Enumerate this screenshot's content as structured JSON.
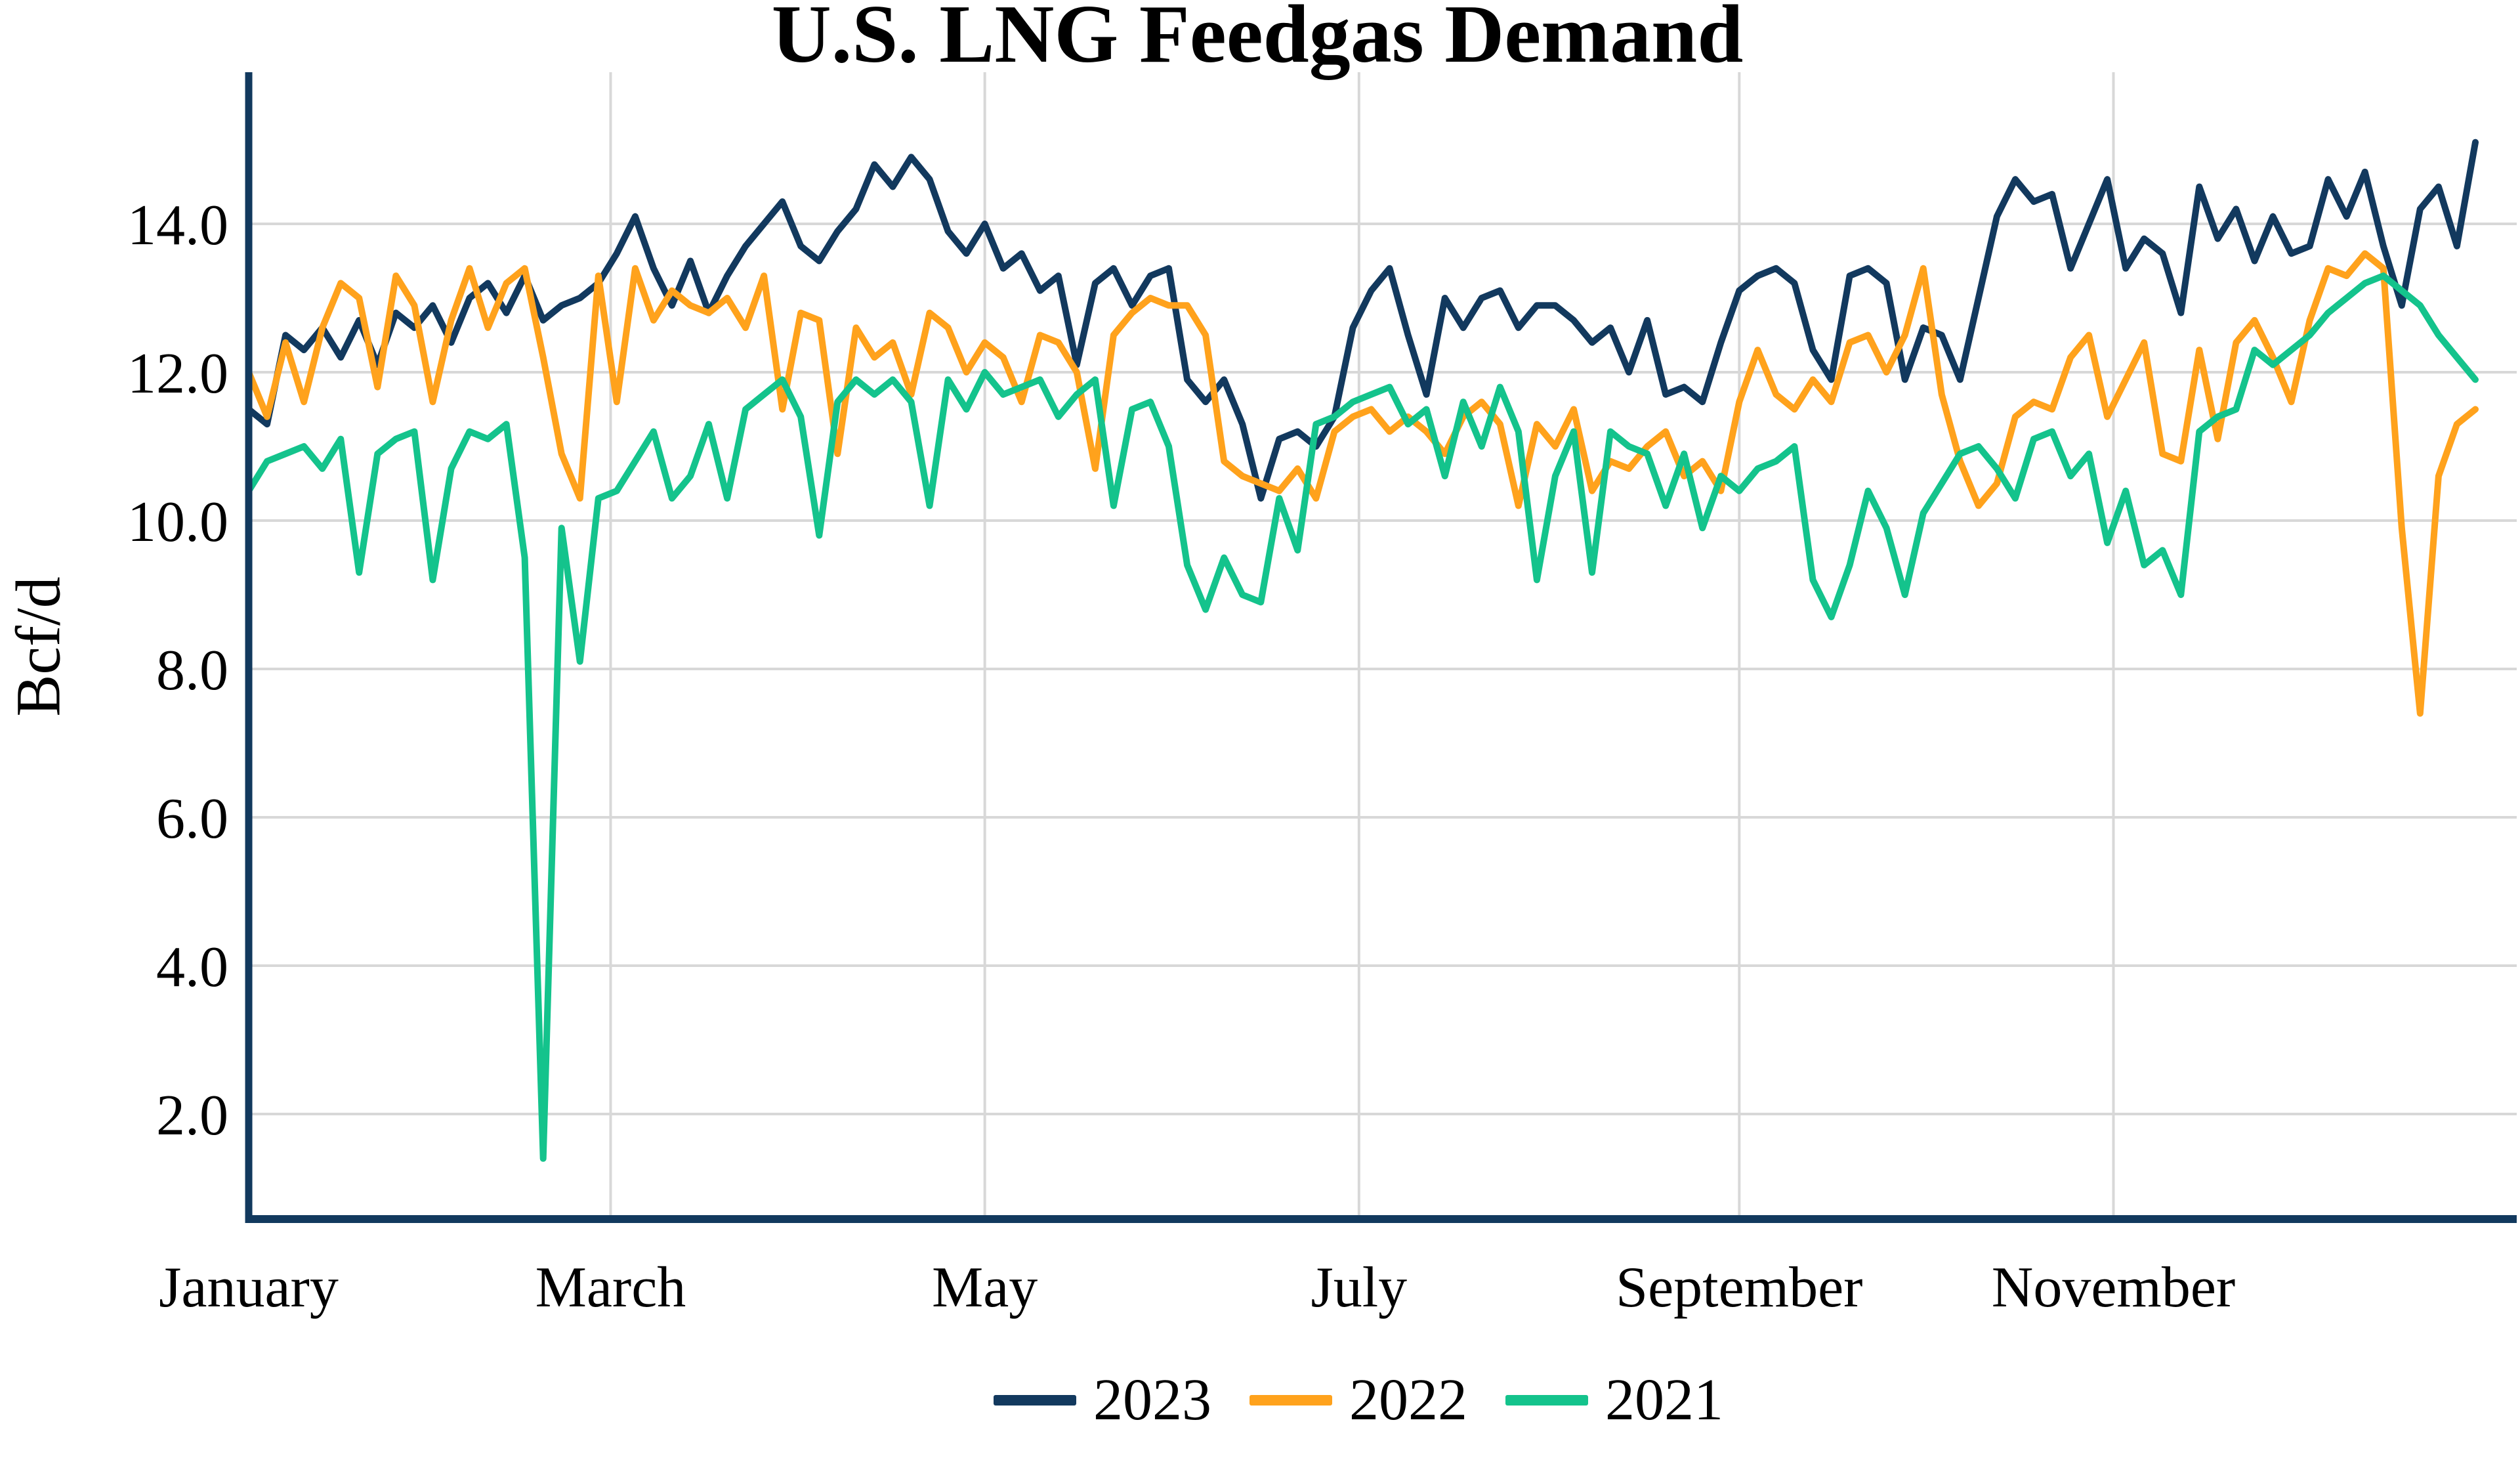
{
  "header": {
    "title": "U.S. LNG Feedgas Demand"
  },
  "chart_data": {
    "type": "line",
    "title": "U.S. LNG Feedgas Demand",
    "xlabel": "",
    "ylabel": "Bcf/d",
    "grid": {
      "show": true,
      "color": "#d8d8d8"
    },
    "axis_line_color": "#12395E",
    "legend_position": "bottom",
    "x_axis": {
      "unit": "day of year",
      "range_days": [
        0,
        366
      ],
      "tick_labels": [
        "January",
        "March",
        "May",
        "July",
        "September",
        "November"
      ],
      "tick_days": [
        0,
        59,
        120,
        181,
        243,
        304
      ],
      "vertical_gridline_days": [
        59,
        120,
        181,
        243,
        304
      ]
    },
    "y_axis": {
      "range": [
        0.6,
        16.1
      ],
      "tick_values": [
        2,
        4,
        6,
        8,
        10,
        12,
        14
      ],
      "tick_labels": [
        "2.0",
        "4.0",
        "6.0",
        "8.0",
        "10.0",
        "12.0",
        "14.0"
      ]
    },
    "sample_interval_days": 3,
    "series": [
      {
        "name": "2023",
        "color": "#12395E",
        "values": [
          11.5,
          11.3,
          12.5,
          12.3,
          12.6,
          12.2,
          12.7,
          12.1,
          12.8,
          12.6,
          12.9,
          12.4,
          13.0,
          13.2,
          12.8,
          13.3,
          12.7,
          12.9,
          13.0,
          13.2,
          13.6,
          14.1,
          13.4,
          12.9,
          13.5,
          12.8,
          13.3,
          13.7,
          14.0,
          14.3,
          13.7,
          13.5,
          13.9,
          14.2,
          14.8,
          14.5,
          14.9,
          14.6,
          13.9,
          13.6,
          14.0,
          13.4,
          13.6,
          13.1,
          13.3,
          12.1,
          13.2,
          13.4,
          12.9,
          13.3,
          13.4,
          11.9,
          11.6,
          11.9,
          11.3,
          10.3,
          11.1,
          11.2,
          11.0,
          11.4,
          12.6,
          13.1,
          13.4,
          12.5,
          11.7,
          13.0,
          12.6,
          13.0,
          13.1,
          12.6,
          12.9,
          12.9,
          12.7,
          12.4,
          12.6,
          12.0,
          12.7,
          11.7,
          11.8,
          11.6,
          12.4,
          13.1,
          13.3,
          13.4,
          13.2,
          12.3,
          11.9,
          13.3,
          13.4,
          13.2,
          11.9,
          12.6,
          12.5,
          11.9,
          13.0,
          14.1,
          14.6,
          14.3,
          14.4,
          13.4,
          14.0,
          14.6,
          13.4,
          13.8,
          13.6,
          12.8,
          14.5,
          13.8,
          14.2,
          13.5,
          14.1,
          13.6,
          13.7,
          14.6,
          14.1,
          14.7,
          13.7,
          12.9,
          14.2,
          14.5,
          13.7,
          15.1
        ]
      },
      {
        "name": "2022",
        "color": "#FFA21C",
        "values": [
          12.0,
          11.4,
          12.4,
          11.6,
          12.6,
          13.2,
          13.0,
          11.8,
          13.3,
          12.9,
          11.6,
          12.7,
          13.4,
          12.6,
          13.2,
          13.4,
          12.2,
          10.9,
          10.3,
          13.3,
          11.6,
          13.4,
          12.7,
          13.1,
          12.9,
          12.8,
          13.0,
          12.6,
          13.3,
          11.5,
          12.8,
          12.7,
          10.9,
          12.6,
          12.2,
          12.4,
          11.7,
          12.8,
          12.6,
          12.0,
          12.4,
          12.2,
          11.6,
          12.5,
          12.4,
          12.0,
          10.7,
          12.5,
          12.8,
          13.0,
          12.9,
          12.9,
          12.5,
          10.8,
          10.6,
          10.5,
          10.4,
          10.7,
          10.3,
          11.2,
          11.4,
          11.5,
          11.2,
          11.4,
          11.2,
          10.9,
          11.4,
          11.6,
          11.3,
          10.2,
          11.3,
          11.0,
          11.5,
          10.4,
          10.8,
          10.7,
          11.0,
          11.2,
          10.6,
          10.8,
          10.4,
          11.6,
          12.3,
          11.7,
          11.5,
          11.9,
          11.6,
          12.4,
          12.5,
          12.0,
          12.5,
          13.4,
          11.7,
          10.8,
          10.2,
          10.5,
          11.4,
          11.6,
          11.5,
          12.2,
          12.5,
          11.4,
          11.9,
          12.4,
          10.9,
          10.8,
          12.3,
          11.1,
          12.4,
          12.7,
          12.2,
          11.6,
          12.7,
          13.4,
          13.3,
          13.6,
          13.4,
          9.9,
          7.4,
          10.6,
          11.3,
          11.5
        ]
      },
      {
        "name": "2021",
        "color": "#14C38C",
        "values": [
          10.4,
          10.8,
          10.9,
          11.0,
          10.7,
          11.1,
          9.3,
          10.9,
          11.1,
          11.2,
          9.2,
          10.7,
          11.2,
          11.1,
          11.3,
          9.5,
          1.4,
          9.9,
          8.1,
          10.3,
          10.4,
          10.8,
          11.2,
          10.3,
          10.6,
          11.3,
          10.3,
          11.5,
          11.7,
          11.9,
          11.4,
          9.8,
          11.6,
          11.9,
          11.7,
          11.9,
          11.6,
          10.2,
          11.9,
          11.5,
          12.0,
          11.7,
          11.8,
          11.9,
          11.4,
          11.7,
          11.9,
          10.2,
          11.5,
          11.6,
          11.0,
          9.4,
          8.8,
          9.5,
          9.0,
          8.9,
          10.3,
          9.6,
          11.3,
          11.4,
          11.6,
          11.7,
          11.8,
          11.3,
          11.5,
          10.6,
          11.6,
          11.0,
          11.8,
          11.2,
          9.2,
          10.6,
          11.2,
          9.3,
          11.2,
          11.0,
          10.9,
          10.2,
          10.9,
          9.9,
          10.6,
          10.4,
          10.7,
          10.8,
          11.0,
          9.2,
          8.7,
          9.4,
          10.4,
          9.9,
          9.0,
          10.1,
          10.5,
          10.9,
          11.0,
          10.7,
          10.3,
          11.1,
          11.2,
          10.6,
          10.9,
          9.7,
          10.4,
          9.4,
          9.6,
          9.0,
          11.2,
          11.4,
          11.5,
          12.3,
          12.1,
          12.3,
          12.5,
          12.8,
          13.0,
          13.2,
          13.3,
          13.1,
          12.9,
          12.5,
          12.2,
          11.9
        ]
      }
    ]
  },
  "legend": {
    "items": [
      {
        "label": "2023",
        "color": "#12395E"
      },
      {
        "label": "2022",
        "color": "#FFA21C"
      },
      {
        "label": "2021",
        "color": "#14C38C"
      }
    ]
  }
}
